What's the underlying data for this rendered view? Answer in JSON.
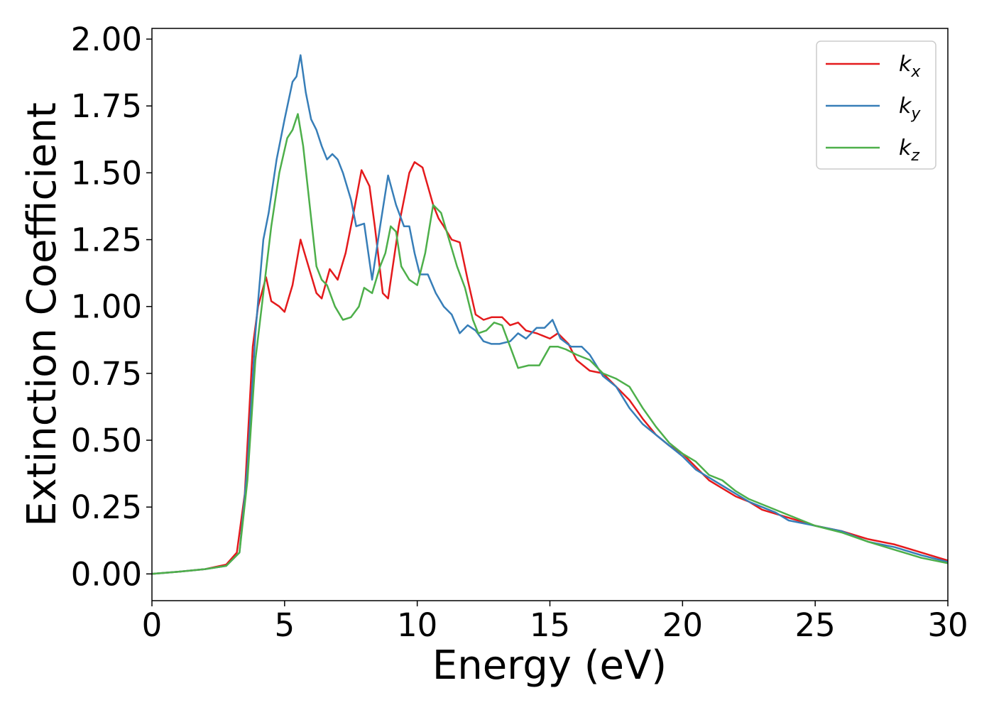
{
  "chart_data": {
    "type": "line",
    "xlabel": "Energy (eV)",
    "ylabel": "Extinction Coefficient",
    "xlim": [
      0,
      30
    ],
    "ylim": [
      -0.1,
      2.04
    ],
    "xticks": [
      0,
      5,
      10,
      15,
      20,
      25,
      30
    ],
    "xtick_labels": [
      "0",
      "5",
      "10",
      "15",
      "20",
      "25",
      "30"
    ],
    "yticks": [
      0,
      0.25,
      0.5,
      0.75,
      1.0,
      1.25,
      1.5,
      1.75,
      2.0
    ],
    "ytick_labels": [
      "0.00",
      "0.25",
      "0.50",
      "0.75",
      "1.00",
      "1.25",
      "1.50",
      "1.75",
      "2.00"
    ],
    "grid": false,
    "legend_position": "top-right",
    "series": [
      {
        "name": "kx",
        "label_base": "k",
        "label_sub": "x",
        "color": "#e41a1c",
        "points": [
          [
            0,
            0
          ],
          [
            1,
            0.008
          ],
          [
            2,
            0.018
          ],
          [
            2.8,
            0.035
          ],
          [
            3.2,
            0.08
          ],
          [
            3.5,
            0.3
          ],
          [
            3.8,
            0.85
          ],
          [
            4.0,
            1.0
          ],
          [
            4.3,
            1.11
          ],
          [
            4.5,
            1.02
          ],
          [
            4.8,
            1.0
          ],
          [
            5.0,
            0.98
          ],
          [
            5.3,
            1.08
          ],
          [
            5.6,
            1.25
          ],
          [
            5.9,
            1.15
          ],
          [
            6.2,
            1.05
          ],
          [
            6.4,
            1.03
          ],
          [
            6.7,
            1.14
          ],
          [
            7.0,
            1.1
          ],
          [
            7.3,
            1.2
          ],
          [
            7.6,
            1.35
          ],
          [
            7.9,
            1.51
          ],
          [
            8.2,
            1.45
          ],
          [
            8.4,
            1.3
          ],
          [
            8.7,
            1.05
          ],
          [
            8.9,
            1.03
          ],
          [
            9.3,
            1.3
          ],
          [
            9.7,
            1.5
          ],
          [
            9.9,
            1.54
          ],
          [
            10.2,
            1.52
          ],
          [
            10.4,
            1.45
          ],
          [
            10.6,
            1.38
          ],
          [
            10.8,
            1.33
          ],
          [
            11.0,
            1.3
          ],
          [
            11.3,
            1.25
          ],
          [
            11.6,
            1.24
          ],
          [
            11.9,
            1.1
          ],
          [
            12.2,
            0.97
          ],
          [
            12.5,
            0.95
          ],
          [
            12.8,
            0.96
          ],
          [
            13.2,
            0.96
          ],
          [
            13.5,
            0.93
          ],
          [
            13.8,
            0.94
          ],
          [
            14.1,
            0.91
          ],
          [
            14.5,
            0.9
          ],
          [
            15.0,
            0.88
          ],
          [
            15.3,
            0.9
          ],
          [
            15.7,
            0.86
          ],
          [
            16.0,
            0.8
          ],
          [
            16.5,
            0.76
          ],
          [
            17.0,
            0.75
          ],
          [
            17.5,
            0.7
          ],
          [
            18.0,
            0.65
          ],
          [
            18.5,
            0.58
          ],
          [
            19.0,
            0.52
          ],
          [
            19.5,
            0.48
          ],
          [
            20.0,
            0.45
          ],
          [
            20.5,
            0.4
          ],
          [
            21.0,
            0.35
          ],
          [
            21.5,
            0.32
          ],
          [
            22.0,
            0.29
          ],
          [
            22.5,
            0.27
          ],
          [
            23.0,
            0.24
          ],
          [
            24.0,
            0.21
          ],
          [
            25.0,
            0.18
          ],
          [
            26.0,
            0.16
          ],
          [
            27.0,
            0.13
          ],
          [
            28.0,
            0.11
          ],
          [
            29.0,
            0.08
          ],
          [
            30.0,
            0.05
          ]
        ]
      },
      {
        "name": "ky",
        "label_base": "k",
        "label_sub": "y",
        "color": "#377eb8",
        "points": [
          [
            0,
            0
          ],
          [
            1,
            0.008
          ],
          [
            2,
            0.018
          ],
          [
            2.8,
            0.03
          ],
          [
            3.3,
            0.08
          ],
          [
            3.6,
            0.4
          ],
          [
            3.9,
            0.9
          ],
          [
            4.2,
            1.25
          ],
          [
            4.4,
            1.35
          ],
          [
            4.7,
            1.55
          ],
          [
            5.0,
            1.7
          ],
          [
            5.3,
            1.84
          ],
          [
            5.45,
            1.86
          ],
          [
            5.6,
            1.94
          ],
          [
            5.8,
            1.8
          ],
          [
            6.0,
            1.7
          ],
          [
            6.2,
            1.66
          ],
          [
            6.4,
            1.6
          ],
          [
            6.6,
            1.55
          ],
          [
            6.8,
            1.57
          ],
          [
            7.0,
            1.55
          ],
          [
            7.2,
            1.5
          ],
          [
            7.5,
            1.4
          ],
          [
            7.7,
            1.3
          ],
          [
            8.0,
            1.31
          ],
          [
            8.3,
            1.1
          ],
          [
            8.6,
            1.3
          ],
          [
            8.9,
            1.49
          ],
          [
            9.2,
            1.38
          ],
          [
            9.5,
            1.3
          ],
          [
            9.7,
            1.3
          ],
          [
            9.9,
            1.2
          ],
          [
            10.1,
            1.12
          ],
          [
            10.4,
            1.12
          ],
          [
            10.7,
            1.05
          ],
          [
            11.0,
            1.0
          ],
          [
            11.3,
            0.97
          ],
          [
            11.6,
            0.9
          ],
          [
            11.9,
            0.93
          ],
          [
            12.2,
            0.91
          ],
          [
            12.5,
            0.87
          ],
          [
            12.8,
            0.86
          ],
          [
            13.1,
            0.86
          ],
          [
            13.5,
            0.87
          ],
          [
            13.8,
            0.9
          ],
          [
            14.1,
            0.88
          ],
          [
            14.5,
            0.92
          ],
          [
            14.8,
            0.92
          ],
          [
            15.1,
            0.95
          ],
          [
            15.4,
            0.88
          ],
          [
            15.8,
            0.85
          ],
          [
            16.2,
            0.85
          ],
          [
            16.5,
            0.82
          ],
          [
            17.0,
            0.74
          ],
          [
            17.5,
            0.7
          ],
          [
            18.0,
            0.62
          ],
          [
            18.5,
            0.56
          ],
          [
            19.0,
            0.52
          ],
          [
            19.5,
            0.48
          ],
          [
            20.0,
            0.44
          ],
          [
            20.5,
            0.39
          ],
          [
            21.0,
            0.36
          ],
          [
            21.5,
            0.33
          ],
          [
            22.0,
            0.3
          ],
          [
            22.5,
            0.27
          ],
          [
            23.0,
            0.25
          ],
          [
            23.5,
            0.23
          ],
          [
            24.0,
            0.2
          ],
          [
            25.0,
            0.18
          ],
          [
            26.0,
            0.16
          ],
          [
            27.0,
            0.12
          ],
          [
            28.0,
            0.1
          ],
          [
            29.0,
            0.07
          ],
          [
            30.0,
            0.045
          ]
        ]
      },
      {
        "name": "kz",
        "label_base": "k",
        "label_sub": "z",
        "color": "#4daf4a",
        "points": [
          [
            0,
            0
          ],
          [
            1,
            0.008
          ],
          [
            2,
            0.018
          ],
          [
            2.8,
            0.03
          ],
          [
            3.3,
            0.08
          ],
          [
            3.6,
            0.35
          ],
          [
            3.9,
            0.8
          ],
          [
            4.2,
            1.05
          ],
          [
            4.5,
            1.3
          ],
          [
            4.8,
            1.5
          ],
          [
            5.1,
            1.63
          ],
          [
            5.3,
            1.66
          ],
          [
            5.5,
            1.72
          ],
          [
            5.7,
            1.6
          ],
          [
            5.9,
            1.42
          ],
          [
            6.0,
            1.33
          ],
          [
            6.2,
            1.15
          ],
          [
            6.4,
            1.1
          ],
          [
            6.6,
            1.08
          ],
          [
            6.9,
            1.0
          ],
          [
            7.2,
            0.95
          ],
          [
            7.5,
            0.96
          ],
          [
            7.8,
            1.0
          ],
          [
            8.0,
            1.07
          ],
          [
            8.3,
            1.05
          ],
          [
            8.6,
            1.15
          ],
          [
            8.8,
            1.2
          ],
          [
            9.0,
            1.3
          ],
          [
            9.2,
            1.28
          ],
          [
            9.4,
            1.15
          ],
          [
            9.7,
            1.1
          ],
          [
            10.0,
            1.08
          ],
          [
            10.3,
            1.2
          ],
          [
            10.6,
            1.38
          ],
          [
            10.9,
            1.35
          ],
          [
            11.2,
            1.25
          ],
          [
            11.5,
            1.15
          ],
          [
            11.8,
            1.07
          ],
          [
            12.1,
            0.95
          ],
          [
            12.3,
            0.9
          ],
          [
            12.6,
            0.91
          ],
          [
            12.9,
            0.94
          ],
          [
            13.2,
            0.93
          ],
          [
            13.5,
            0.85
          ],
          [
            13.8,
            0.77
          ],
          [
            14.2,
            0.78
          ],
          [
            14.6,
            0.78
          ],
          [
            15.0,
            0.85
          ],
          [
            15.3,
            0.85
          ],
          [
            15.6,
            0.84
          ],
          [
            16.0,
            0.82
          ],
          [
            16.5,
            0.8
          ],
          [
            17.0,
            0.75
          ],
          [
            17.5,
            0.73
          ],
          [
            18.0,
            0.7
          ],
          [
            18.5,
            0.62
          ],
          [
            19.0,
            0.55
          ],
          [
            19.5,
            0.49
          ],
          [
            20.0,
            0.45
          ],
          [
            20.5,
            0.42
          ],
          [
            21.0,
            0.37
          ],
          [
            21.5,
            0.35
          ],
          [
            22.0,
            0.31
          ],
          [
            22.5,
            0.28
          ],
          [
            23.0,
            0.26
          ],
          [
            24.0,
            0.22
          ],
          [
            25.0,
            0.18
          ],
          [
            26.0,
            0.155
          ],
          [
            27.0,
            0.12
          ],
          [
            28.0,
            0.09
          ],
          [
            29.0,
            0.06
          ],
          [
            30.0,
            0.04
          ]
        ]
      }
    ]
  }
}
